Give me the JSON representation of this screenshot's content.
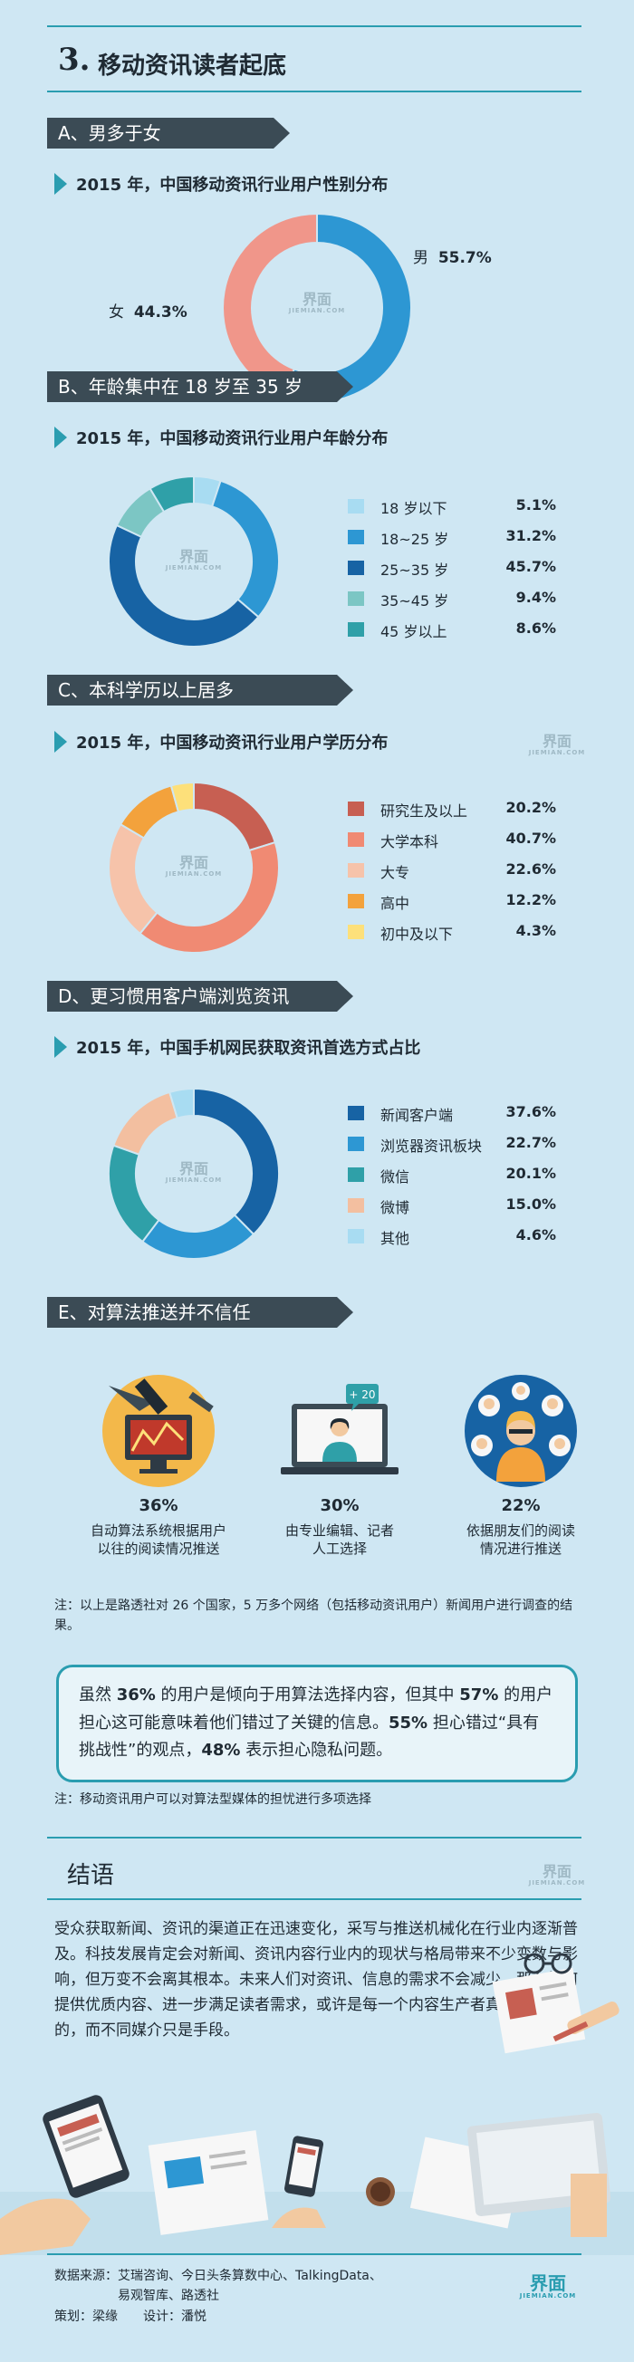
{
  "header": {
    "number": "3.",
    "title": "移动资讯读者起底"
  },
  "sections": {
    "a": {
      "tag": "A、男多于女",
      "subtitle": "2015 年，中国移动资讯行业用户性别分布"
    },
    "b": {
      "tag": "B、年龄集中在 18 岁至 35 岁",
      "subtitle": "2015 年，中国移动资讯行业用户年龄分布"
    },
    "c": {
      "tag": "C、本科学历以上居多",
      "subtitle": "2015 年，中国移动资讯行业用户学历分布"
    },
    "d": {
      "tag": "D、更习惯用客户端浏览资讯",
      "subtitle": "2015 年，中国手机网民获取资讯首选方式占比"
    },
    "e": {
      "tag": "E、对算法推送并不信任"
    }
  },
  "logo": {
    "text": "界面",
    "sub": "JIEMIAN.COM"
  },
  "chart_data": [
    {
      "type": "pie",
      "title": "2015 年，中国移动资讯行业用户性别分布",
      "slices": [
        {
          "label": "男",
          "value": 55.7,
          "text": "55.7%",
          "color": "#2d97d3"
        },
        {
          "label": "女",
          "value": 44.3,
          "text": "44.3%",
          "color": "#f0968a"
        }
      ]
    },
    {
      "type": "pie",
      "title": "2015 年，中国移动资讯行业用户年龄分布",
      "slices": [
        {
          "label": "18 岁以下",
          "value": 5.1,
          "text": "5.1%",
          "color": "#a8dcf2"
        },
        {
          "label": "18~25 岁",
          "value": 31.2,
          "text": "31.2%",
          "color": "#2d97d3"
        },
        {
          "label": "25~35 岁",
          "value": 45.7,
          "text": "45.7%",
          "color": "#1763a4"
        },
        {
          "label": "35~45 岁",
          "value": 9.4,
          "text": "9.4%",
          "color": "#7cc6c4"
        },
        {
          "label": "45 岁以上",
          "value": 8.6,
          "text": "8.6%",
          "color": "#2fa0a8"
        }
      ]
    },
    {
      "type": "pie",
      "title": "2015 年，中国移动资讯行业用户学历分布",
      "slices": [
        {
          "label": "研究生及以上",
          "value": 20.2,
          "text": "20.2%",
          "color": "#c75f52"
        },
        {
          "label": "大学本科",
          "value": 40.7,
          "text": "40.7%",
          "color": "#f08a73"
        },
        {
          "label": "大专",
          "value": 22.6,
          "text": "22.6%",
          "color": "#f6c3aa"
        },
        {
          "label": "高中",
          "value": 12.2,
          "text": "12.2%",
          "color": "#f3a23c"
        },
        {
          "label": "初中及以下",
          "value": 4.3,
          "text": "4.3%",
          "color": "#fde07a"
        }
      ]
    },
    {
      "type": "pie",
      "title": "2015 年，中国手机网民获取资讯首选方式占比",
      "slices": [
        {
          "label": "新闻客户端",
          "value": 37.6,
          "text": "37.6%",
          "color": "#1763a4"
        },
        {
          "label": "浏览器资讯板块",
          "value": 22.7,
          "text": "22.7%",
          "color": "#2d97d3"
        },
        {
          "label": "微信",
          "value": 20.1,
          "text": "20.1%",
          "color": "#2fa0a8"
        },
        {
          "label": "微博",
          "value": 15.0,
          "text": "15.0%",
          "color": "#f3bfa0"
        },
        {
          "label": "其他",
          "value": 4.6,
          "text": "4.6%",
          "color": "#a8dcf2"
        }
      ]
    }
  ],
  "icons": [
    {
      "pct": "36%",
      "desc1": "自动算法系统根据用户",
      "desc2": "以往的阅读情况推送",
      "icon": "chart-monitor-icon"
    },
    {
      "pct": "30%",
      "desc1": "由专业编辑、记者",
      "desc2": "人工选择",
      "icon": "editor-laptop-icon",
      "badge": "+ 20"
    },
    {
      "pct": "22%",
      "desc1": "依据朋友们的阅读",
      "desc2": "情况进行推送",
      "icon": "friends-network-icon"
    }
  ],
  "note1": "注：以上是路透社对 26 个国家，5 万多个网络（包括移动资讯用户）新闻用户进行调查的结果。",
  "highlight": {
    "t1": "虽然 ",
    "b1": "36%",
    "t2": " 的用户是倾向于用算法选择内容，但其中 ",
    "b2": "57%",
    "t3": " 的用户担心这可能意味着他们错过了关键的信息。",
    "b3": "55%",
    "t4": " 担心错过“具有挑战性”的观点，",
    "b4": "48%",
    "t5": " 表示担心隐私问题。"
  },
  "note2": "注：移动资讯用户可以对算法型媒体的担忧进行多项选择",
  "conclusion": {
    "title": "结语",
    "body": "受众获取新闻、资讯的渠道正在迅速变化，采写与推送机械化在行业内逐渐普及。科技发展肯定会对新闻、资讯内容行业内的现状与格局带来不少变数与影响，但万变不会离其根本。未来人们对资讯、信息的需求不会减少，那么如何提供优质内容、进一步满足读者需求，或许是每一个内容生产者真正应该顾虑的，而不同媒介只是手段。"
  },
  "footer": {
    "source": "数据来源：艾瑞咨询、今日头条算数中心、TalkingData、",
    "source2": "易观智库、路透社",
    "credit": "策划：梁缘　　设计：潘悦"
  },
  "colors": {
    "bg": "#cfe7f3",
    "accent": "#2a9db0",
    "tag": "#3b4b55"
  }
}
